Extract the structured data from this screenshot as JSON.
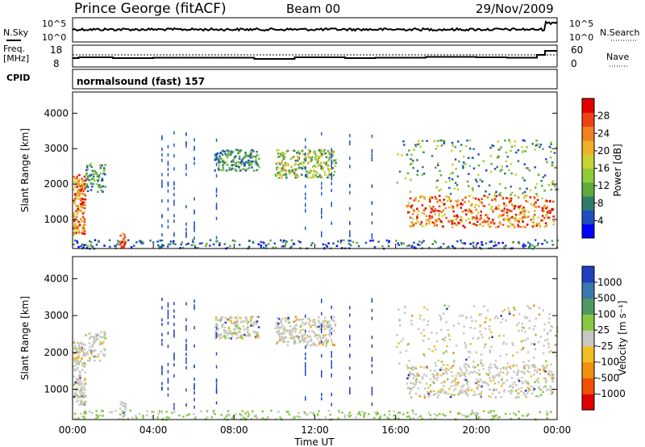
{
  "header": {
    "station": "Prince George (fitACF)",
    "beam": "Beam 00",
    "date": "29/Nov/2009"
  },
  "panel_labels": {
    "nsky": "N.Sky",
    "nsearch": "N.Search",
    "freq": "Freq.",
    "mhz": "[MHz]",
    "nave": "Nave",
    "cpid": "CPID",
    "mode": "normalsound (fast) 157"
  },
  "noise_ticks_left": [
    "10^5",
    "10^0"
  ],
  "noise_ticks_right": [
    "10^5",
    "10^0"
  ],
  "freq_ticks_left": [
    "18",
    "8"
  ],
  "freq_ticks_right": [
    "60",
    "0"
  ],
  "chart_data": [
    {
      "type": "heatmap",
      "name": "power",
      "ylabel": "Slant Range [km]",
      "xlabel": "",
      "x_range_hours": [
        0,
        24
      ],
      "ylim": [
        180,
        4600
      ],
      "yticks": [
        1000,
        2000,
        3000,
        4000
      ],
      "colorbar": {
        "label": "Power [dB]",
        "range": [
          0,
          32
        ],
        "ticks": [
          "4",
          "8",
          "12",
          "16",
          "20",
          "24",
          "28"
        ]
      },
      "colors": [
        "#0000ff",
        "#1f4fbf",
        "#2e7d6b",
        "#5faa3c",
        "#8fcc3a",
        "#c8d232",
        "#f0b028",
        "#f08020",
        "#f04018",
        "#e00000"
      ]
    },
    {
      "type": "heatmap",
      "name": "velocity",
      "ylabel": "Slant Range [km]",
      "xlabel": "Time UT",
      "x_range_hours": [
        0,
        24
      ],
      "ylim": [
        180,
        4600
      ],
      "yticks": [
        1000,
        2000,
        3000,
        4000
      ],
      "colorbar": {
        "label": "Velocity [m s⁻¹]",
        "ticks": [
          "1000",
          "500",
          "100",
          "25",
          "-25",
          "-100",
          "-500",
          "-1000"
        ]
      },
      "colors": [
        "#2040c0",
        "#3a78b0",
        "#4e9a60",
        "#86c840",
        "#c8c8c0",
        "#f0c020",
        "#f09010",
        "#f05000",
        "#e00000"
      ]
    }
  ],
  "xticks": [
    "00:00",
    "04:00",
    "08:00",
    "12:00",
    "16:00",
    "20:00",
    "00:00"
  ]
}
